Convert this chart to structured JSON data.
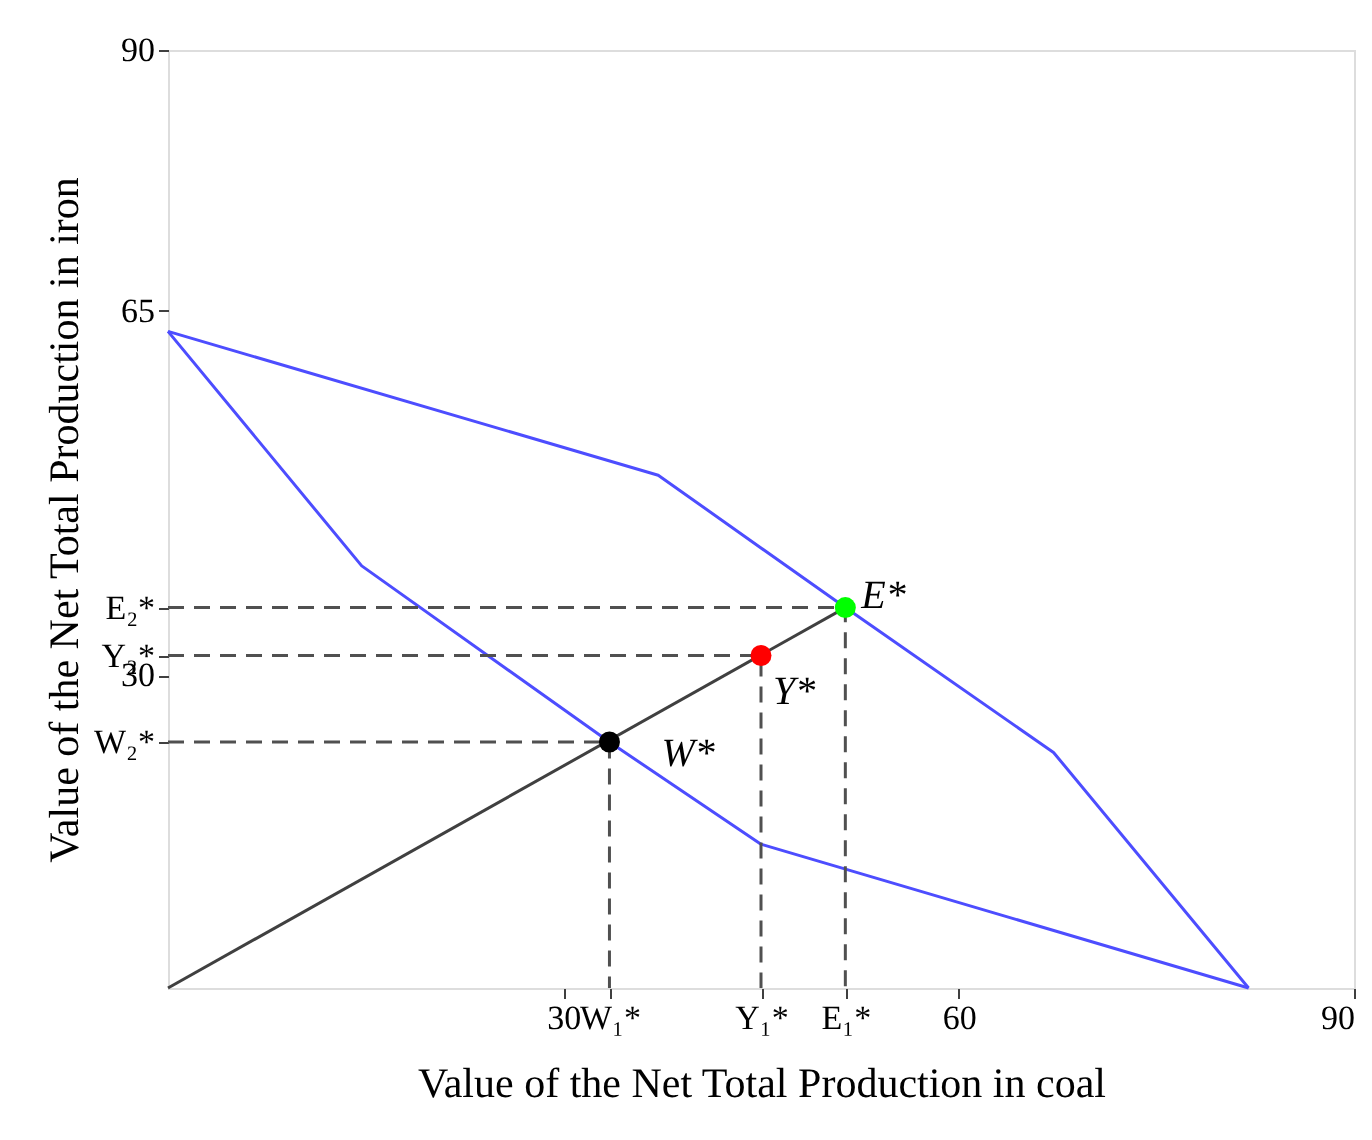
{
  "chart_data": {
    "type": "line",
    "xlabel": "Value of the Net Total Production in coal",
    "ylabel": "Value of the Net Total Production in iron",
    "xlim": [
      0,
      90
    ],
    "ylim": [
      0,
      90
    ],
    "xticks": [
      30,
      60,
      90,
      {
        "value": 33.5,
        "label": "W₁*"
      },
      {
        "value": 45,
        "label": "Y₁*"
      },
      {
        "value": 51.4,
        "label": "E₁*"
      }
    ],
    "yticks": [
      30,
      65,
      90,
      {
        "value": 36.5,
        "label": "E₂*"
      },
      {
        "value": 31.9,
        "label": "Y₂*"
      },
      {
        "value": 23.6,
        "label": "W₂*"
      }
    ],
    "grid": false,
    "series": [
      {
        "color": "#4d4dff",
        "x": [
          0,
          37.2,
          51.4,
          67.2,
          82
        ],
        "values": [
          63,
          49.2,
          36.5,
          22.6,
          0
        ]
      },
      {
        "color": "#4d4dff",
        "x": [
          0,
          14.7,
          33.5,
          45,
          82
        ],
        "values": [
          63,
          40.5,
          23.6,
          13.8,
          0
        ]
      },
      {
        "color": "#404040",
        "x": [
          0,
          51.4
        ],
        "values": [
          0,
          36.5
        ]
      },
      {
        "color": "#505050",
        "line_style": "dashed",
        "x": [
          0,
          51.4,
          51.4
        ],
        "values": [
          36.5,
          36.5,
          0
        ]
      },
      {
        "color": "#505050",
        "line_style": "dashed",
        "x": [
          0,
          45,
          45
        ],
        "values": [
          31.9,
          31.9,
          0
        ]
      },
      {
        "color": "#505050",
        "line_style": "dashed",
        "x": [
          0,
          33.5,
          33.5
        ],
        "values": [
          23.6,
          23.6,
          0
        ]
      },
      {
        "type": "scatter",
        "marker": "circle",
        "x": [
          33.5,
          45,
          51.4
        ],
        "values": [
          23.6,
          31.9,
          36.5
        ],
        "colors": [
          "#000000",
          "#ff0000",
          "#00ff00"
        ]
      }
    ],
    "annotations": [
      {
        "text": "E*",
        "x": 51.4,
        "y": 36.5
      },
      {
        "text": "Y*",
        "x": 45,
        "y": 31.9
      },
      {
        "text": "W*",
        "x": 33.5,
        "y": 23.6
      }
    ]
  }
}
